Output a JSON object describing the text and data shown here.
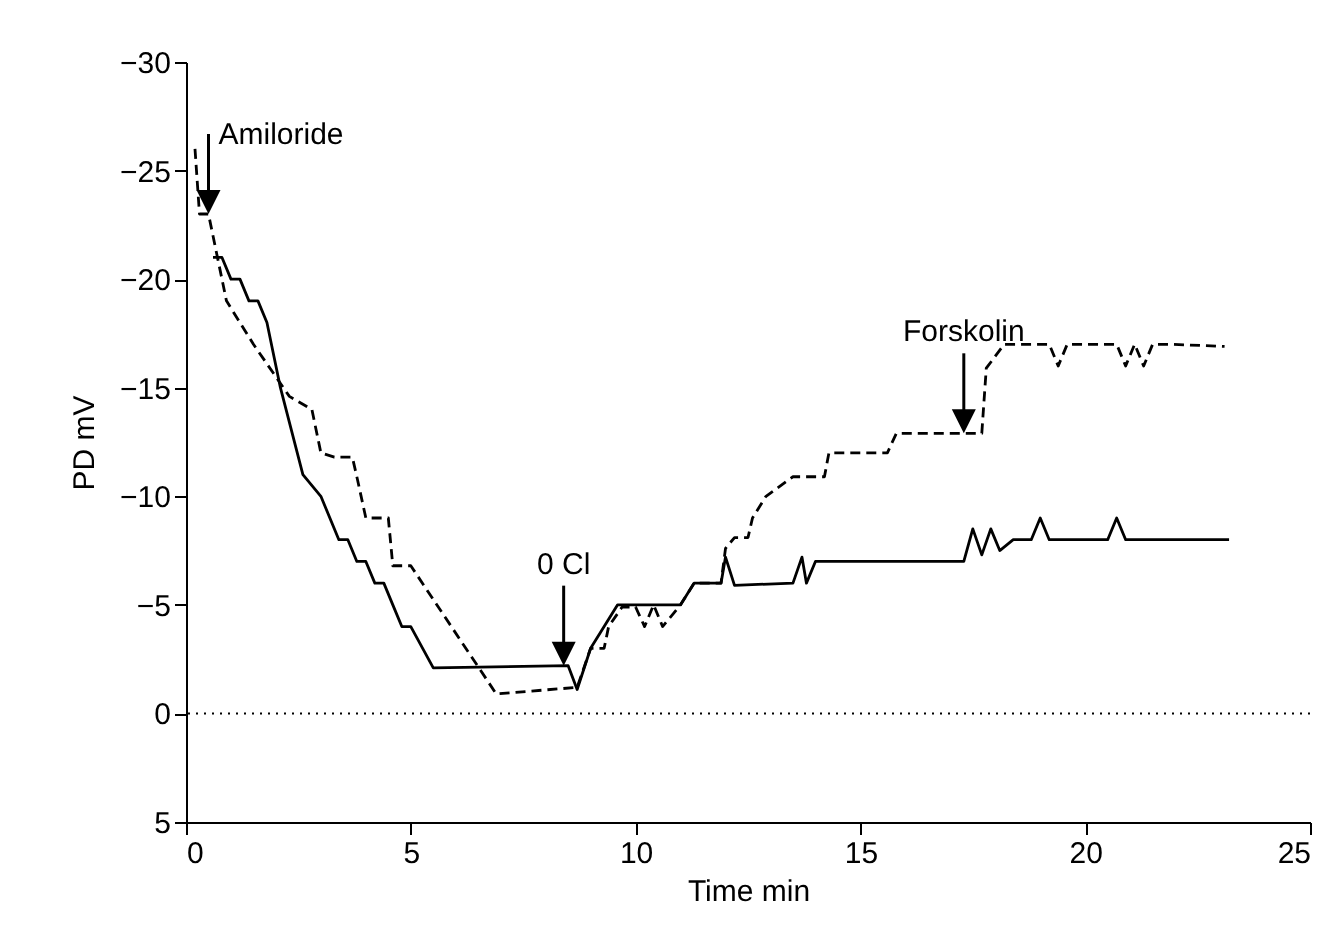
{
  "chart_data": {
    "type": "line",
    "xlabel": "Time min",
    "ylabel": "PD mV",
    "xlim": [
      0,
      25
    ],
    "xticks": [
      0,
      5,
      10,
      15,
      20,
      25
    ],
    "ylim": [
      5,
      -30
    ],
    "yticks": [
      -30,
      -25,
      -20,
      -15,
      -10,
      -5,
      0,
      5
    ],
    "grid": false,
    "marker": "none",
    "ref_lines": [
      {
        "axis": "y",
        "value": 0,
        "line_style": "dotted",
        "color": "#000000"
      }
    ],
    "annotations": [
      {
        "text": "Amiloride",
        "x": 0.5,
        "y": -23.0
      },
      {
        "text": "0 Cl",
        "x": 8.4,
        "y": -2.2
      },
      {
        "text": "Forskolin",
        "x": 17.3,
        "y": -12.9
      }
    ],
    "series": [
      {
        "color": "#000000",
        "line_style": "solid",
        "x": [
          0.6,
          0.8,
          1.0,
          1.2,
          1.4,
          1.6,
          1.8,
          2.1,
          2.6,
          3.0,
          3.4,
          3.6,
          3.8,
          4.0,
          4.2,
          4.4,
          4.6,
          4.8,
          5.0,
          5.5,
          8.5,
          8.7,
          9.0,
          9.3,
          9.6,
          11.0,
          11.3,
          11.9,
          12.0,
          12.2,
          13.5,
          13.7,
          13.8,
          14.0,
          17.3,
          17.5,
          17.7,
          17.9,
          18.1,
          18.4,
          18.8,
          19.0,
          19.2,
          19.4,
          20.5,
          20.7,
          20.9,
          23.2
        ],
        "values": [
          -21.0,
          -21.0,
          -20.0,
          -20.0,
          -19.0,
          -19.0,
          -18.0,
          -15.0,
          -11.0,
          -10.0,
          -8.0,
          -8.0,
          -7.0,
          -7.0,
          -6.0,
          -6.0,
          -5.0,
          -4.0,
          -4.0,
          -2.1,
          -2.2,
          -1.1,
          -3.0,
          -4.0,
          -5.0,
          -5.0,
          -6.0,
          -6.0,
          -7.2,
          -5.9,
          -6.0,
          -7.2,
          -6.0,
          -7.0,
          -7.0,
          -8.5,
          -7.3,
          -8.5,
          -7.5,
          -8.0,
          -8.0,
          -9.0,
          -8.0,
          -8.0,
          -8.0,
          -9.0,
          -8.0,
          -8.0
        ]
      },
      {
        "color": "#000000",
        "line_style": "dashed",
        "x": [
          0.2,
          0.3,
          0.5,
          0.9,
          1.2,
          1.5,
          2.3,
          2.8,
          3.0,
          3.3,
          3.7,
          3.8,
          4.0,
          4.5,
          4.6,
          5.0,
          6.9,
          8.7,
          9.0,
          9.3,
          9.4,
          9.7,
          10.0,
          10.2,
          10.4,
          10.6,
          11.0,
          11.3,
          11.9,
          12.0,
          12.2,
          12.5,
          12.6,
          12.9,
          13.5,
          14.2,
          14.3,
          15.6,
          15.8,
          17.7,
          17.8,
          18.2,
          19.2,
          19.4,
          19.6,
          20.7,
          20.9,
          21.1,
          21.3,
          21.5,
          21.9,
          23.1
        ],
        "values": [
          -26.0,
          -23.0,
          -23.0,
          -19.0,
          -18.0,
          -17.0,
          -14.6,
          -14.0,
          -12.0,
          -11.8,
          -11.8,
          -10.9,
          -9.0,
          -9.0,
          -6.8,
          -6.8,
          -0.9,
          -1.2,
          -3.0,
          -3.0,
          -4.0,
          -4.9,
          -4.9,
          -4.0,
          -5.0,
          -4.0,
          -5.0,
          -6.0,
          -6.0,
          -7.6,
          -8.1,
          -8.1,
          -9.0,
          -10.0,
          -10.9,
          -10.9,
          -12.0,
          -12.0,
          -12.9,
          -12.9,
          -15.9,
          -17.0,
          -17.0,
          -16.0,
          -17.0,
          -17.0,
          -16.0,
          -17.0,
          -16.0,
          -17.0,
          -17.0,
          -16.9
        ]
      }
    ]
  }
}
